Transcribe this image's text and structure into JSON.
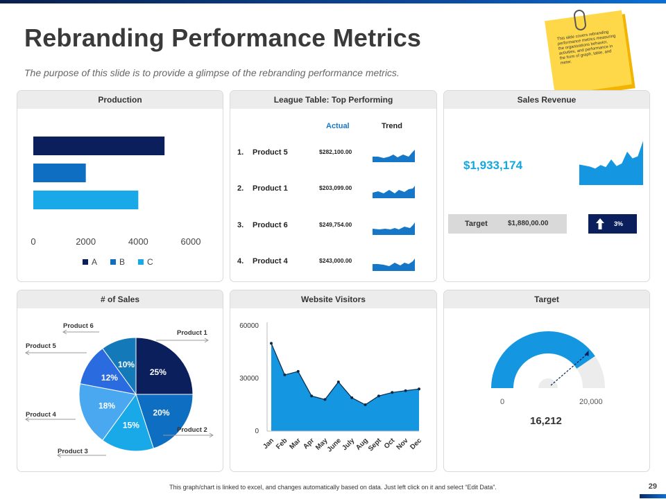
{
  "page": {
    "title": "Rebranding Performance Metrics",
    "subtitle": "The purpose of this slide is to provide a glimpse of the rebranding performance metrics.",
    "note": "This slide covers rebranding performance metrics measuring the organizations behavior, activities, and performance in the form of graph, table, and meter.",
    "footer": "This graph/chart is linked to excel, and changes automatically based on data. Just left click on it and select “Edit Data”.",
    "page_number": "29"
  },
  "colors": {
    "navy": "#0a1f5c",
    "blue": "#0e6ec1",
    "sky": "#1aa9e8",
    "bright": "#1496e0",
    "grey": "#d9d9d9"
  },
  "panels": {
    "production": "Production",
    "league": "League Table: Top Performing",
    "sales_revenue": "Sales Revenue",
    "num_sales": "# of Sales",
    "website": "Website Visitors",
    "target": "Target"
  },
  "league": {
    "col_actual": "Actual",
    "col_trend": "Trend",
    "rows": [
      {
        "num": "1.",
        "name": "Product 5",
        "value": "$282,100.00"
      },
      {
        "num": "2.",
        "name": "Product 1",
        "value": "$203,099.00"
      },
      {
        "num": "3.",
        "name": "Product 6",
        "value": "$249,754.00"
      },
      {
        "num": "4.",
        "name": "Product 4",
        "value": "$243,000.00"
      }
    ]
  },
  "sales_revenue": {
    "amount": "$1,933,174",
    "target_label": "Target",
    "target_value": "$1,880,00.00",
    "change": "3%",
    "arrow_icon": "up-arrow-icon"
  },
  "target_gauge": {
    "value": "16,212",
    "min_label": "0",
    "max_label": "20,000",
    "fraction": 0.81
  },
  "chart_data": [
    {
      "type": "bar",
      "orientation": "horizontal",
      "title": "Production",
      "categories": [
        "A",
        "B",
        "C"
      ],
      "values": [
        5000,
        2000,
        4000
      ],
      "xlim": [
        0,
        6000
      ],
      "ticks": [
        "0",
        "2000",
        "4000",
        "6000"
      ],
      "legend": [
        "A",
        "B",
        "C"
      ]
    },
    {
      "type": "pie",
      "title": "# of Sales",
      "labels": [
        "Product 1",
        "Product 2",
        "Product 3",
        "Product 4",
        "Product 5",
        "Product 6"
      ],
      "values": [
        25,
        20,
        15,
        18,
        12,
        10
      ],
      "value_labels": [
        "25%",
        "20%",
        "15%",
        "18%",
        "12%",
        "10%"
      ]
    },
    {
      "type": "area",
      "title": "Website Visitors",
      "categories": [
        "Jan",
        "Feb",
        "Mar",
        "Apr",
        "May",
        "June",
        "July",
        "Aug",
        "Sept",
        "Oct",
        "Nov",
        "Dec"
      ],
      "values": [
        50000,
        32000,
        34000,
        20000,
        18000,
        28000,
        19000,
        15000,
        20000,
        22000,
        23000,
        24000
      ],
      "ylim": [
        0,
        60000
      ],
      "yticks": [
        "0",
        "30000",
        "60000"
      ]
    },
    {
      "type": "area",
      "title": "Sales Revenue trend",
      "values": [
        4,
        3.8,
        3.6,
        3.2,
        3.9,
        3.5,
        5,
        3.7,
        4.2,
        6.5,
        5.2,
        5.6,
        8.6
      ]
    }
  ]
}
